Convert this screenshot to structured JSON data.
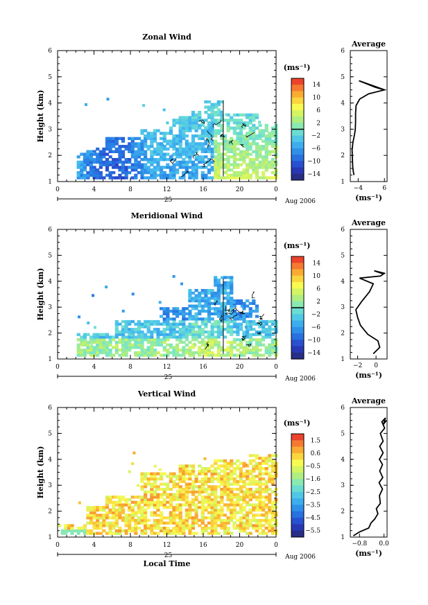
{
  "chart_data": [
    {
      "type": "heatmap",
      "title": "Zonal Wind",
      "ylabel": "Height (km)",
      "xlim": [
        0,
        24
      ],
      "ylim": [
        1,
        6
      ],
      "x_ticks": [
        "0",
        "4",
        "8",
        "12",
        "16",
        "20",
        "0"
      ],
      "y_ticks": [
        "1",
        "2",
        "3",
        "4",
        "5",
        "6"
      ],
      "day_label": "25",
      "date_label": "Aug 2006",
      "colorbar": {
        "unit": "(ms⁻¹)",
        "ticks": [
          "14",
          "10",
          "6",
          "2",
          "−2",
          "−6",
          "−10",
          "−14"
        ],
        "range": [
          -16,
          16
        ]
      },
      "profile": {
        "title": "Average",
        "xlabel": "(ms⁻¹)",
        "x_ticks": [
          "−4",
          "6"
        ],
        "xlim": [
          -7,
          7
        ],
        "points": [
          [
            -5.6,
            1.25
          ],
          [
            -5.9,
            1.4
          ],
          [
            -6.1,
            1.6
          ],
          [
            -6.2,
            1.9
          ],
          [
            -6.3,
            2.2
          ],
          [
            -6.0,
            2.5
          ],
          [
            -5.4,
            2.8
          ],
          [
            -5.1,
            3.0
          ],
          [
            -5.0,
            3.3
          ],
          [
            -5.0,
            3.6
          ],
          [
            -4.8,
            3.9
          ],
          [
            -3.4,
            4.15
          ],
          [
            0.0,
            4.35
          ],
          [
            6.0,
            4.5
          ],
          [
            2.5,
            4.6
          ],
          [
            -3.7,
            4.85
          ],
          [
            6.1,
            4.5
          ]
        ]
      }
    },
    {
      "type": "heatmap",
      "title": "Meridional Wind",
      "ylabel": "Height (km)",
      "xlim": [
        0,
        24
      ],
      "ylim": [
        1,
        6
      ],
      "x_ticks": [
        "0",
        "4",
        "8",
        "12",
        "16",
        "20",
        "0"
      ],
      "y_ticks": [
        "1",
        "2",
        "3",
        "4",
        "5",
        "6"
      ],
      "day_label": "25",
      "date_label": "Aug 2006",
      "colorbar": {
        "unit": "(ms⁻¹)",
        "ticks": [
          "14",
          "10",
          "6",
          "2",
          "−2",
          "−6",
          "−10",
          "−14"
        ],
        "range": [
          -16,
          16
        ]
      },
      "profile": {
        "title": "Average",
        "xlabel": "(ms⁻¹)",
        "x_ticks": [
          "−2",
          "0"
        ],
        "xlim": [
          -2.8,
          1.2
        ],
        "points": [
          [
            -0.3,
            1.2
          ],
          [
            0.4,
            1.45
          ],
          [
            0.2,
            1.7
          ],
          [
            -0.9,
            1.95
          ],
          [
            -1.7,
            2.3
          ],
          [
            -2.0,
            2.6
          ],
          [
            -2.2,
            2.9
          ],
          [
            -1.6,
            3.2
          ],
          [
            -0.7,
            3.6
          ],
          [
            -0.3,
            3.9
          ],
          [
            -1.8,
            4.12
          ],
          [
            0.5,
            4.2
          ],
          [
            0.8,
            4.28
          ],
          [
            -0.2,
            4.4
          ],
          [
            1.0,
            4.3
          ]
        ]
      }
    },
    {
      "type": "heatmap",
      "title": "Vertical Wind",
      "ylabel": "Height (km)",
      "xlabel": "Local Time",
      "xlim": [
        0,
        24
      ],
      "ylim": [
        1,
        6
      ],
      "x_ticks": [
        "0",
        "4",
        "8",
        "12",
        "16",
        "20",
        "0"
      ],
      "y_ticks": [
        "1",
        "2",
        "3",
        "4",
        "5",
        "6"
      ],
      "day_label": "25",
      "date_label": "Aug 2006",
      "colorbar": {
        "unit": "(ms⁻¹)",
        "ticks": [
          "1.5",
          "0.6",
          "−0.5",
          "−1.6",
          "−2.5",
          "−3.5",
          "−4.5",
          "−5.5"
        ],
        "range": [
          -6.0,
          2.0
        ]
      },
      "profile": {
        "title": "Average",
        "xlabel": "(ms⁻¹)",
        "x_ticks": [
          "−0.8",
          "0.0"
        ],
        "xlim": [
          -1.1,
          0.1
        ],
        "points": [
          [
            -1.0,
            1.05
          ],
          [
            -0.8,
            1.2
          ],
          [
            -0.5,
            1.35
          ],
          [
            -0.42,
            1.55
          ],
          [
            -0.3,
            1.7
          ],
          [
            -0.2,
            1.9
          ],
          [
            -0.25,
            2.1
          ],
          [
            -0.12,
            2.3
          ],
          [
            -0.15,
            2.6
          ],
          [
            -0.05,
            2.85
          ],
          [
            -0.16,
            3.1
          ],
          [
            -0.04,
            3.3
          ],
          [
            -0.14,
            3.55
          ],
          [
            -0.05,
            3.8
          ],
          [
            -0.15,
            4.0
          ],
          [
            -0.03,
            4.25
          ],
          [
            -0.14,
            4.5
          ],
          [
            -0.03,
            4.7
          ],
          [
            -0.12,
            5.0
          ],
          [
            0.02,
            5.2
          ],
          [
            -0.07,
            5.45
          ],
          [
            0.05,
            5.6
          ],
          [
            -0.02,
            5.35
          ],
          [
            0.08,
            5.5
          ]
        ]
      }
    }
  ]
}
